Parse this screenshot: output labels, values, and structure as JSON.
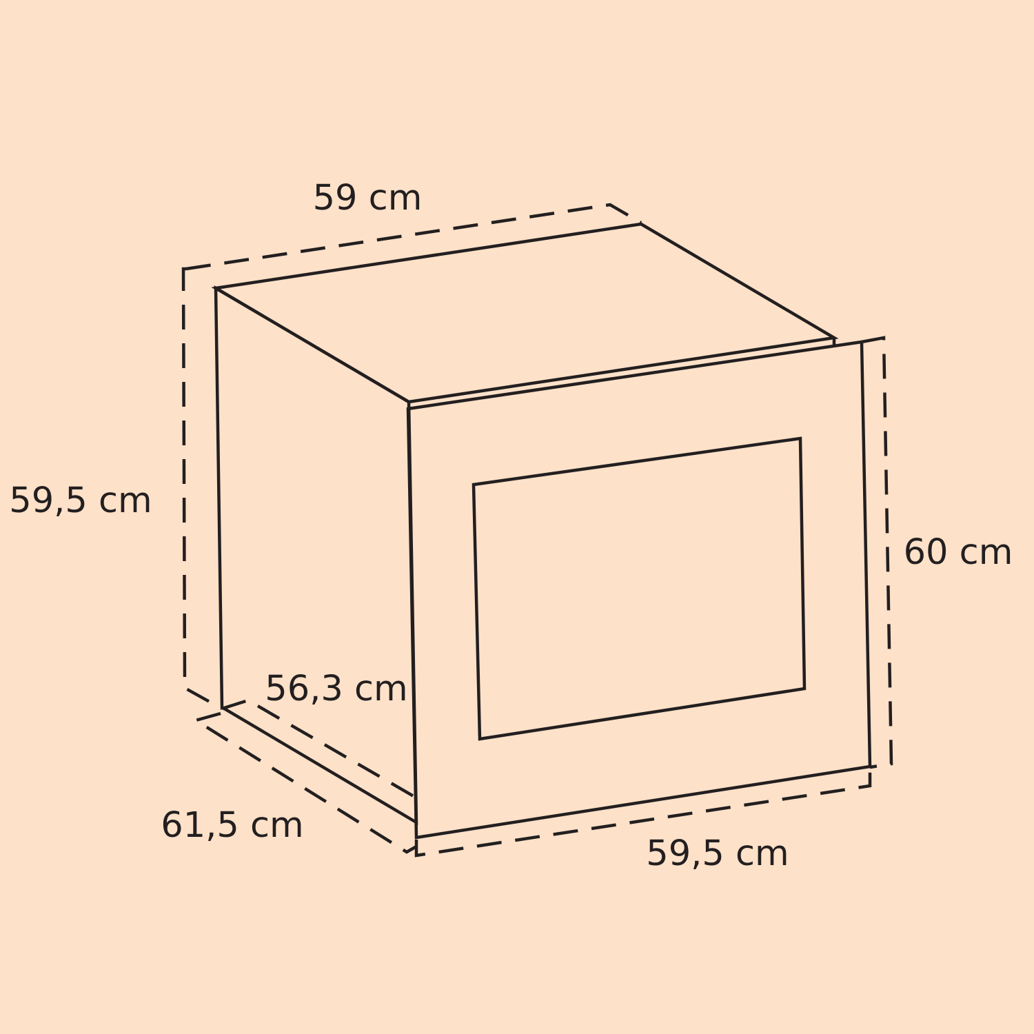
{
  "colors": {
    "background": "#fde1c9",
    "line": "#231f20"
  },
  "dimensions": {
    "top_width": "59 cm",
    "left_height": "59,5 cm",
    "right_height": "60 cm",
    "inner_depth": "56,3 cm",
    "outer_depth": "61,5 cm",
    "front_width": "59,5 cm"
  }
}
